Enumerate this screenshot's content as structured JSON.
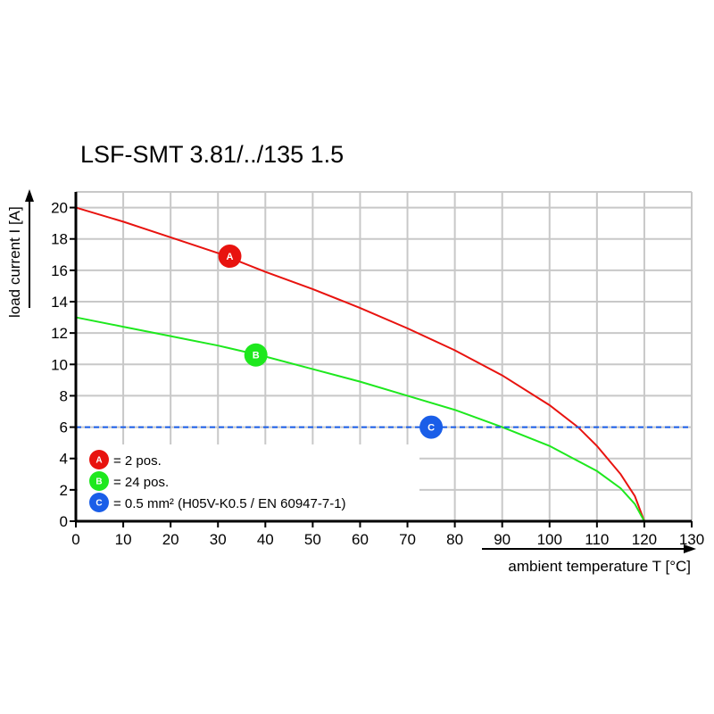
{
  "chart_data": {
    "type": "line",
    "title": "LSF-SMT 3.81/../135 1.5",
    "xlabel": "ambient temperature T [°C]",
    "ylabel": "load current I [A]",
    "xlim": [
      0,
      130
    ],
    "ylim": [
      0,
      21
    ],
    "xticks": [
      0,
      10,
      20,
      30,
      40,
      50,
      60,
      70,
      80,
      90,
      100,
      110,
      120,
      130
    ],
    "yticks": [
      0,
      2,
      4,
      6,
      8,
      10,
      12,
      14,
      16,
      18,
      20
    ],
    "grid": true,
    "series": [
      {
        "marker": "A",
        "color": "#e8130f",
        "x": [
          0,
          10,
          20,
          30,
          40,
          50,
          60,
          70,
          80,
          90,
          100,
          106,
          110,
          115,
          118,
          120
        ],
        "y": [
          20,
          19.1,
          18.1,
          17.1,
          15.9,
          14.8,
          13.6,
          12.3,
          10.9,
          9.3,
          7.4,
          6.0,
          4.8,
          3.0,
          1.6,
          0
        ],
        "label_at": [
          32.5,
          16.9
        ]
      },
      {
        "marker": "B",
        "color": "#1ee81e",
        "x": [
          0,
          10,
          20,
          30,
          40,
          50,
          60,
          70,
          80,
          90,
          100,
          110,
          115,
          118,
          120
        ],
        "y": [
          13,
          12.4,
          11.8,
          11.2,
          10.5,
          9.7,
          8.9,
          8.0,
          7.1,
          6.0,
          4.8,
          3.2,
          2.1,
          1.1,
          0
        ],
        "label_at": [
          38,
          10.6
        ]
      },
      {
        "marker": "C",
        "color": "#1a5ee8",
        "style": "dashed",
        "x": [
          0,
          130
        ],
        "y": [
          6,
          6
        ],
        "label_at": [
          75,
          6
        ]
      }
    ],
    "legend": {
      "placement": "bottom-left",
      "entries": [
        {
          "marker": "A",
          "text": "= 2 pos.",
          "color": "#e8130f"
        },
        {
          "marker": "B",
          "text": "= 24 pos.",
          "color": "#1ee81e"
        },
        {
          "marker": "C",
          "text": "= 0.5 mm² (H05V-K0.5 / EN 60947-7-1)",
          "color": "#1a5ee8"
        }
      ]
    }
  }
}
